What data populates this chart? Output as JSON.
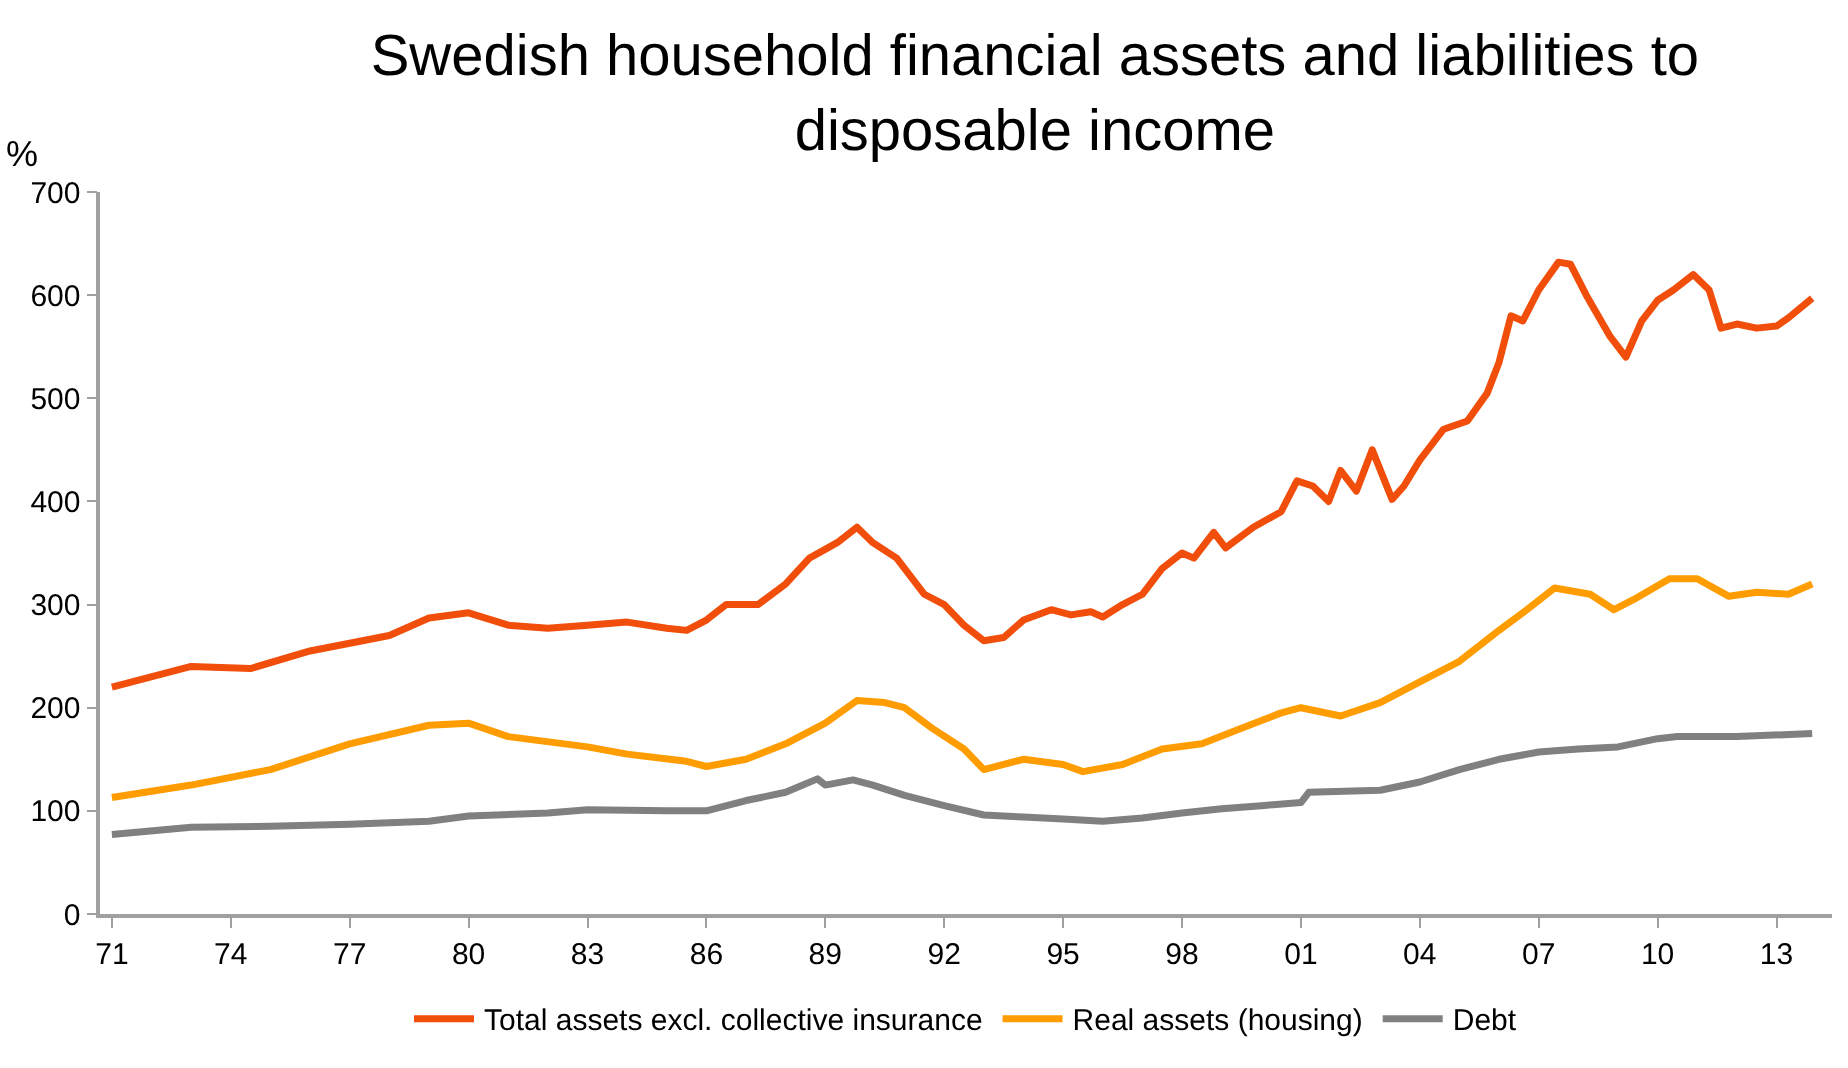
{
  "chart_data": {
    "type": "line",
    "title": "Swedish household financial assets and liabilities to disposable income",
    "ylabel": "%",
    "xlim": [
      1970.7,
      2014.4
    ],
    "ylim": [
      0,
      700
    ],
    "xticks": [
      {
        "value": 1971,
        "label": "71"
      },
      {
        "value": 1974,
        "label": "74"
      },
      {
        "value": 1977,
        "label": "77"
      },
      {
        "value": 1980,
        "label": "80"
      },
      {
        "value": 1983,
        "label": "83"
      },
      {
        "value": 1986,
        "label": "86"
      },
      {
        "value": 1989,
        "label": "89"
      },
      {
        "value": 1992,
        "label": "92"
      },
      {
        "value": 1995,
        "label": "95"
      },
      {
        "value": 1998,
        "label": "98"
      },
      {
        "value": 2001,
        "label": "01"
      },
      {
        "value": 2004,
        "label": "04"
      },
      {
        "value": 2007,
        "label": "07"
      },
      {
        "value": 2010,
        "label": "10"
      },
      {
        "value": 2013,
        "label": "13"
      }
    ],
    "yticks": [
      0,
      100,
      200,
      300,
      400,
      500,
      600,
      700
    ],
    "legend": "bottom",
    "marker": "none",
    "line_style": "solid",
    "series": [
      {
        "name": "Total assets excl. collective insurance",
        "color": "#f04e0a",
        "x": [
          1971,
          1973,
          1974.5,
          1976,
          1978,
          1979,
          1980,
          1981,
          1982,
          1983,
          1984,
          1985,
          1985.5,
          1986,
          1986.5,
          1987.3,
          1988,
          1988.6,
          1989.3,
          1989.8,
          1990.2,
          1990.8,
          1991.5,
          1992,
          1992.5,
          1993,
          1993.5,
          1994,
          1994.7,
          1995.2,
          1995.7,
          1996,
          1996.5,
          1997,
          1997.5,
          1998,
          1998.3,
          1998.8,
          1999.1,
          1999.8,
          2000.5,
          2000.9,
          2001.3,
          2001.7,
          2002,
          2002.4,
          2002.8,
          2003.3,
          2003.6,
          2004,
          2004.6,
          2005.2,
          2005.7,
          2006,
          2006.3,
          2006.6,
          2007,
          2007.5,
          2007.8,
          2008.2,
          2008.8,
          2009.2,
          2009.6,
          2010,
          2010.4,
          2010.9,
          2011.3,
          2011.6,
          2012,
          2012.5,
          2013,
          2013.3,
          2013.9
        ],
        "values": [
          220,
          240,
          238,
          255,
          270,
          287,
          292,
          280,
          277,
          280,
          283,
          277,
          275,
          285,
          300,
          300,
          320,
          345,
          360,
          375,
          360,
          345,
          310,
          300,
          280,
          265,
          268,
          285,
          295,
          290,
          293,
          288,
          300,
          310,
          335,
          350,
          345,
          370,
          355,
          375,
          390,
          420,
          415,
          400,
          430,
          410,
          450,
          402,
          415,
          440,
          470,
          478,
          505,
          535,
          580,
          575,
          605,
          632,
          630,
          600,
          560,
          540,
          575,
          595,
          605,
          620,
          605,
          568,
          572,
          568,
          570,
          578,
          597
        ]
      },
      {
        "name": "Real assets (housing)",
        "color": "#ff9c00",
        "x": [
          1971,
          1973,
          1975,
          1977,
          1979,
          1980,
          1981,
          1983,
          1984,
          1985.5,
          1986,
          1987,
          1988,
          1989,
          1989.8,
          1990.5,
          1991,
          1991.7,
          1992.5,
          1993,
          1994,
          1995,
          1995.5,
          1996.5,
          1997.5,
          1998.5,
          1999.5,
          2000.5,
          2001,
          2002,
          2003,
          2004,
          2005,
          2006,
          2006.7,
          2007.4,
          2008.3,
          2008.9,
          2009.4,
          2010.3,
          2011,
          2011.8,
          2012.5,
          2013.3,
          2013.9
        ],
        "values": [
          113,
          125,
          140,
          165,
          183,
          185,
          172,
          162,
          155,
          148,
          143,
          150,
          165,
          185,
          207,
          205,
          200,
          180,
          160,
          140,
          150,
          145,
          138,
          145,
          160,
          165,
          180,
          195,
          200,
          192,
          205,
          225,
          245,
          275,
          295,
          316,
          310,
          295,
          305,
          325,
          325,
          308,
          312,
          310,
          320
        ]
      },
      {
        "name": "Debt",
        "color": "#808080",
        "x": [
          1971,
          1973,
          1975,
          1977,
          1979,
          1980,
          1982,
          1983,
          1985,
          1986,
          1987,
          1988,
          1988.8,
          1989,
          1989.7,
          1990.2,
          1991,
          1992,
          1993,
          1994,
          1995,
          1996,
          1997,
          1998,
          1999,
          2000,
          2001,
          2001.2,
          2003,
          2004,
          2005,
          2006,
          2007,
          2008,
          2009,
          2010,
          2010.5,
          2012,
          2013.9
        ],
        "values": [
          77,
          84,
          85,
          87,
          90,
          95,
          98,
          101,
          100,
          100,
          110,
          118,
          131,
          125,
          130,
          125,
          115,
          105,
          96,
          94,
          92,
          90,
          93,
          98,
          102,
          105,
          108,
          118,
          120,
          128,
          140,
          150,
          157,
          160,
          162,
          170,
          172,
          172,
          175
        ]
      }
    ]
  }
}
